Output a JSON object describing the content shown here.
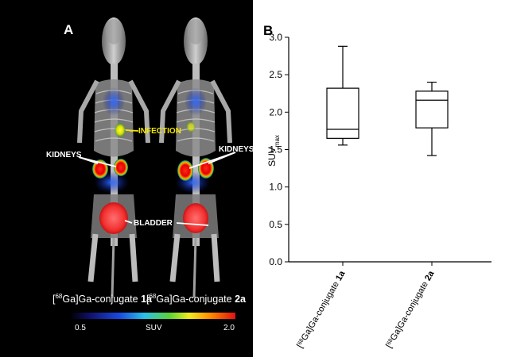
{
  "panel_a": {
    "letter": "A",
    "annotations": {
      "infection": "INFECTION",
      "kidneys_left": "KIDNEYS",
      "kidneys_right": "KIDNEYS",
      "bladder": "BLADDER"
    },
    "captions": [
      {
        "prefix": "[",
        "sup": "68",
        "middle": "Ga]Ga-conjugate ",
        "bold": "1a"
      },
      {
        "prefix": "[",
        "sup": "68",
        "middle": "Ga]Ga-conjugate ",
        "bold": "2a"
      }
    ],
    "colorbar": {
      "min_label": "0.5",
      "label": "SUV",
      "max_label": "2.0"
    },
    "colors": {
      "background": "#000000",
      "annotation": "#ffffff",
      "infection": "#f2e600"
    }
  },
  "chart_data": {
    "type": "box",
    "panel_label": "B",
    "ylabel": "SUV",
    "ylabel_sub": "max",
    "ylim": [
      0.0,
      3.0
    ],
    "yticks": [
      "0.0",
      "0.5",
      "1.0",
      "1.5",
      "2.0",
      "2.5",
      "3.0"
    ],
    "categories": [
      {
        "prefix": "[",
        "sup": "68",
        "middle": "Ga]Ga-conjugate ",
        "bold": "1a"
      },
      {
        "prefix": "[",
        "sup": "68",
        "middle": "Ga]Ga-conjugate ",
        "bold": "2a"
      }
    ],
    "boxes": [
      {
        "min": 1.56,
        "q1": 1.65,
        "median": 1.77,
        "q3": 2.32,
        "max": 2.88
      },
      {
        "min": 1.42,
        "q1": 1.79,
        "median": 2.16,
        "q3": 2.28,
        "max": 2.4
      }
    ]
  }
}
